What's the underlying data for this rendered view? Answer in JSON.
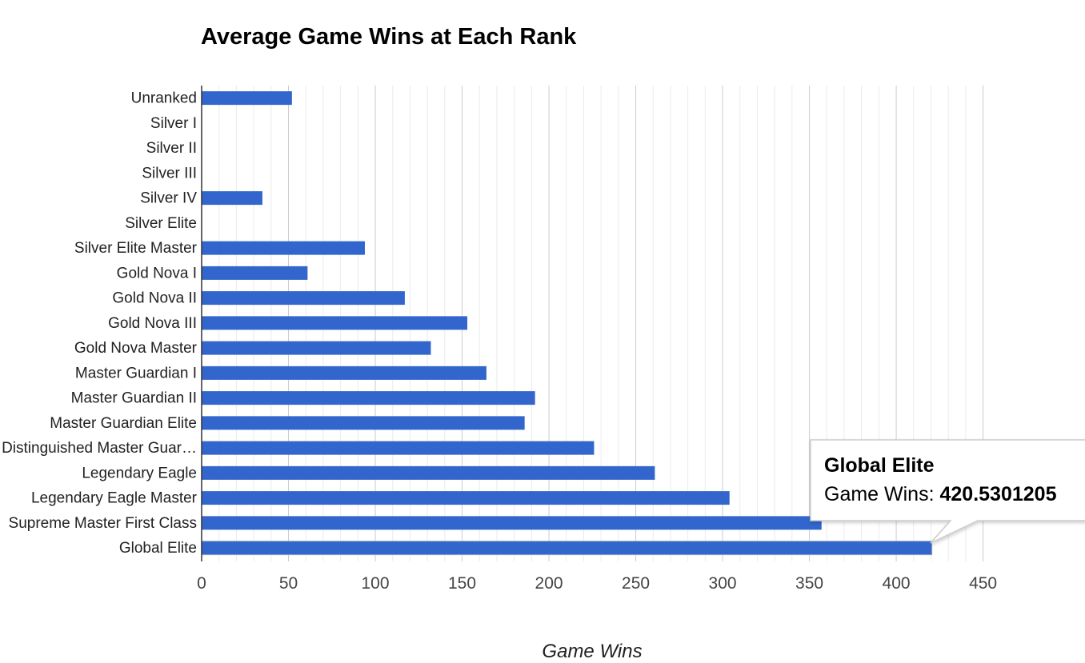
{
  "chart_data": {
    "type": "bar",
    "orientation": "horizontal",
    "title": "Average Game Wins at Each Rank",
    "xlabel": "Game Wins",
    "ylabel": "",
    "xlim": [
      0,
      450
    ],
    "x_ticks": [
      "0",
      "50",
      "100",
      "150",
      "200",
      "250",
      "300",
      "350",
      "400",
      "450"
    ],
    "grid": true,
    "legend": "none",
    "bar_color": "#3366cc",
    "categories": [
      {
        "label": "Unranked",
        "value": 52
      },
      {
        "label": "Silver I",
        "value": 0
      },
      {
        "label": "Silver II",
        "value": 0
      },
      {
        "label": "Silver III",
        "value": 0
      },
      {
        "label": "Silver IV",
        "value": 35
      },
      {
        "label": "Silver Elite",
        "value": 0
      },
      {
        "label": "Silver Elite Master",
        "value": 94
      },
      {
        "label": "Gold Nova I",
        "value": 61
      },
      {
        "label": "Gold Nova II",
        "value": 117
      },
      {
        "label": "Gold Nova III",
        "value": 153
      },
      {
        "label": "Gold Nova Master",
        "value": 132
      },
      {
        "label": "Master Guardian I",
        "value": 164
      },
      {
        "label": "Master Guardian II",
        "value": 192
      },
      {
        "label": "Master Guardian Elite",
        "value": 186
      },
      {
        "label": "Distinguished Master Guar…",
        "value": 226
      },
      {
        "label": "Legendary Eagle",
        "value": 261
      },
      {
        "label": "Legendary Eagle Master",
        "value": 304
      },
      {
        "label": "Supreme Master First Class",
        "value": 357
      },
      {
        "label": "Global Elite",
        "value": 420.5301205
      }
    ],
    "tooltip": {
      "title": "Global Elite",
      "label": "Game Wins: ",
      "value": "420.5301205",
      "target_index": 18
    }
  }
}
